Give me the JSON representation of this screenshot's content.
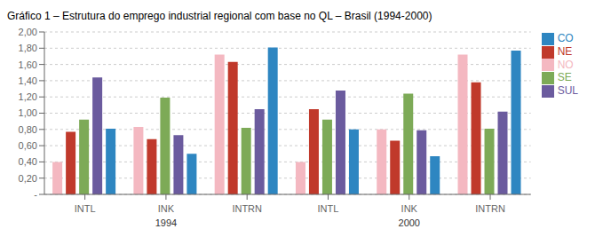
{
  "chart_data": {
    "type": "bar",
    "title": "Gráfico 1 – Estrutura do emprego industrial regional com base no QL – Brasil (1994-2000)",
    "categories": [
      "INTL",
      "INK",
      "INTRN",
      "INTL",
      "INK",
      "INTRN"
    ],
    "series": [
      {
        "name": "NO",
        "color": "#f4b8c1",
        "values": [
          0.4,
          0.83,
          1.72,
          0.4,
          0.8,
          1.72
        ]
      },
      {
        "name": "NE",
        "color": "#c0392b",
        "values": [
          0.77,
          0.68,
          1.63,
          1.05,
          0.66,
          1.38
        ]
      },
      {
        "name": "SE",
        "color": "#7daa57",
        "values": [
          0.92,
          1.19,
          0.82,
          0.92,
          1.24,
          0.81
        ]
      },
      {
        "name": "SUL",
        "color": "#6b5b9e",
        "values": [
          1.44,
          0.73,
          1.05,
          1.28,
          0.79,
          1.02
        ]
      },
      {
        "name": "CO",
        "color": "#2e86c1",
        "values": [
          0.81,
          0.5,
          1.81,
          0.8,
          0.47,
          1.77
        ]
      }
    ],
    "ylim": [
      0,
      2.0
    ],
    "yticks": [
      {
        "value": 0,
        "label": "-"
      },
      {
        "value": 0.2,
        "label": "0,20"
      },
      {
        "value": 0.4,
        "label": "0,40"
      },
      {
        "value": 0.6,
        "label": "0,60"
      },
      {
        "value": 0.8,
        "label": "0,80"
      },
      {
        "value": 1.0,
        "label": "1,00"
      },
      {
        "value": 1.2,
        "label": "1,20"
      },
      {
        "value": 1.4,
        "label": "1,40"
      },
      {
        "value": 1.6,
        "label": "1,60"
      },
      {
        "value": 1.8,
        "label": "1,80"
      },
      {
        "value": 2.0,
        "label": "2,00"
      }
    ],
    "grid": true,
    "legend": "right",
    "annotations": [
      "1994",
      "2000"
    ]
  }
}
